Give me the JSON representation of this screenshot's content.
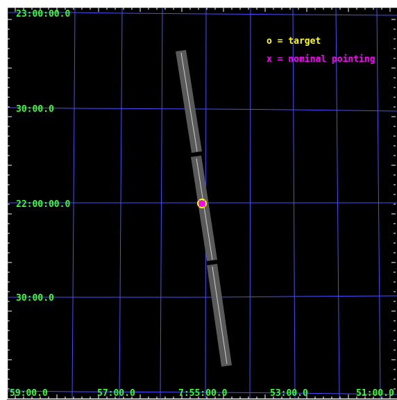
{
  "colors": {
    "background": "#000000",
    "frame": "#ffffff",
    "grid": "#4d4dff",
    "labels": "#33ff33",
    "target": "#ffff00",
    "pointing": "#ff00ff",
    "slit_fill": "#5a5a5a",
    "slit_center": "#cfcfcf"
  },
  "legend": {
    "target_label": "o = target",
    "pointing_label": "x = nominal pointing"
  },
  "dec_labels": [
    "23:00:00.0",
    "30:00.0",
    "22:00:00.0",
    "30:00.0"
  ],
  "ra_labels": [
    "59:00.0",
    "57:00.0",
    "7:55:00.0",
    "53:00.0",
    "51:00.0"
  ],
  "markers": {
    "target_icon": "circle-marker-icon",
    "pointing_icon": "x-marker-icon"
  }
}
